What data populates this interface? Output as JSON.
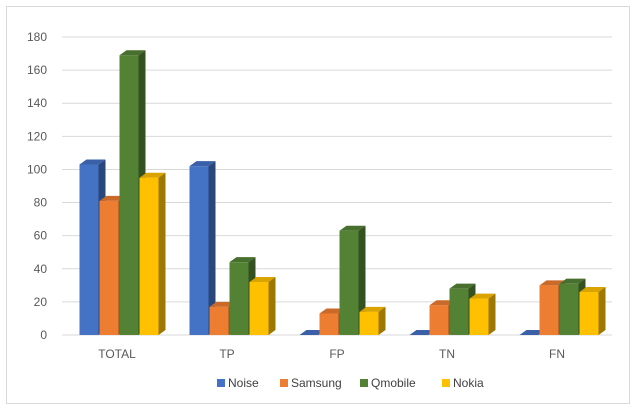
{
  "chart_data": {
    "type": "bar",
    "title": "",
    "xlabel": "",
    "ylabel": "",
    "categories": [
      "TOTAL",
      "TP",
      "FP",
      "TN",
      "FN"
    ],
    "series": [
      {
        "name": "Noise",
        "values": [
          103,
          102,
          0,
          0,
          0
        ],
        "color": "#4472c4"
      },
      {
        "name": "Samsung",
        "values": [
          81,
          17,
          13,
          18,
          30
        ],
        "color": "#ed7d31"
      },
      {
        "name": "Qmobile",
        "values": [
          169,
          44,
          63,
          28,
          31
        ],
        "color": "#548235"
      },
      {
        "name": "Nokia",
        "values": [
          95,
          32,
          14,
          22,
          26
        ],
        "color": "#ffc000"
      }
    ],
    "ylim": [
      0,
      180
    ],
    "yticks": [
      0,
      20,
      40,
      60,
      80,
      100,
      120,
      140,
      160,
      180
    ],
    "grid": true,
    "legend_position": "bottom",
    "style": "3d-clustered-column"
  }
}
